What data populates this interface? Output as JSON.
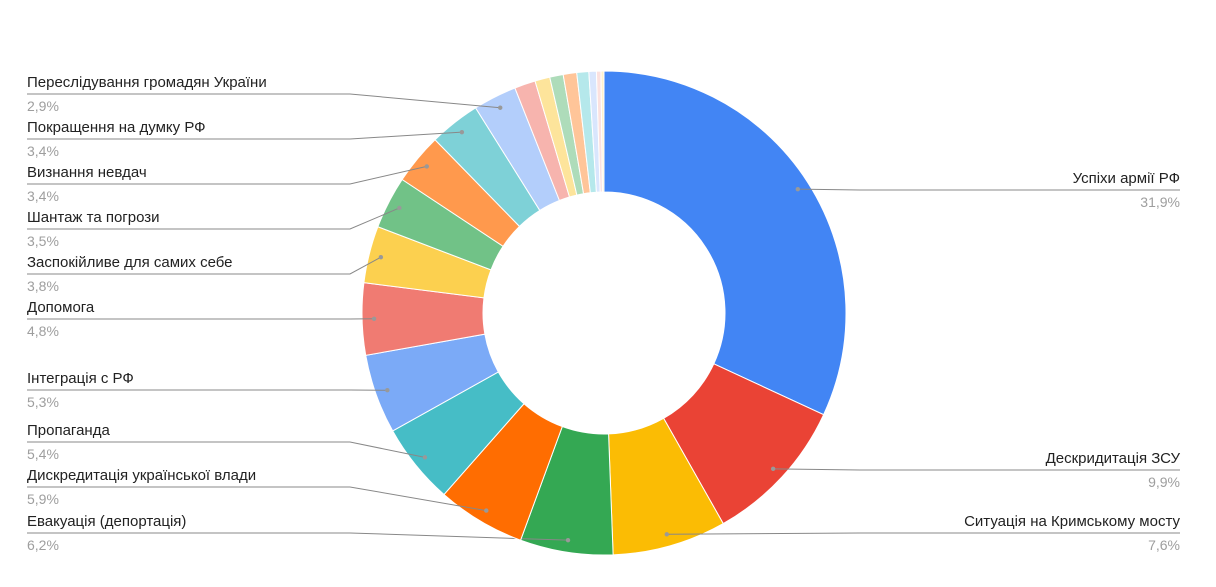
{
  "chart_data": {
    "type": "pie",
    "categories": [
      "Успіхи армії РФ",
      "Дескридитація ЗСУ",
      "Ситуація на Кримському мосту",
      "Евакуація (депортація)",
      "Дискредитація української влади",
      "Пропаганда",
      "Інтеграція с РФ",
      "Допомога",
      "Заспокійливе для самих себе",
      "Шантаж та погрози",
      "Визнання невдач",
      "Покращення на думку РФ",
      "Переслідування громадян України",
      null,
      null,
      null,
      null,
      null,
      null,
      null,
      null
    ],
    "values": [
      31.9,
      9.9,
      7.6,
      6.2,
      5.9,
      5.4,
      5.3,
      4.8,
      3.8,
      3.5,
      3.4,
      3.4,
      2.9,
      1.4,
      1.0,
      0.9,
      0.9,
      0.8,
      0.5,
      0.3,
      0.2
    ],
    "value_labels": [
      "31,9%",
      "9,9%",
      "7,6%",
      "6,2%",
      "5,9%",
      "5,4%",
      "5,3%",
      "4,8%",
      "3,8%",
      "3,5%",
      "3,4%",
      "3,4%",
      "2,9%",
      null,
      null,
      null,
      null,
      null,
      null,
      null,
      null
    ],
    "colors": [
      "#4285f4",
      "#ea4335",
      "#fbbc04",
      "#34a853",
      "#ff6d01",
      "#46bdc6",
      "#7baaf7",
      "#f07b72",
      "#fcd04f",
      "#71c287",
      "#ff994d",
      "#7ed1d7",
      "#b3cefb",
      "#f7b4ae",
      "#fde49b",
      "#aedcba",
      "#ffc599",
      "#b5e8eb",
      "#d9e6fd",
      "#fbe1df",
      "#fff2cc"
    ],
    "donut": true
  }
}
